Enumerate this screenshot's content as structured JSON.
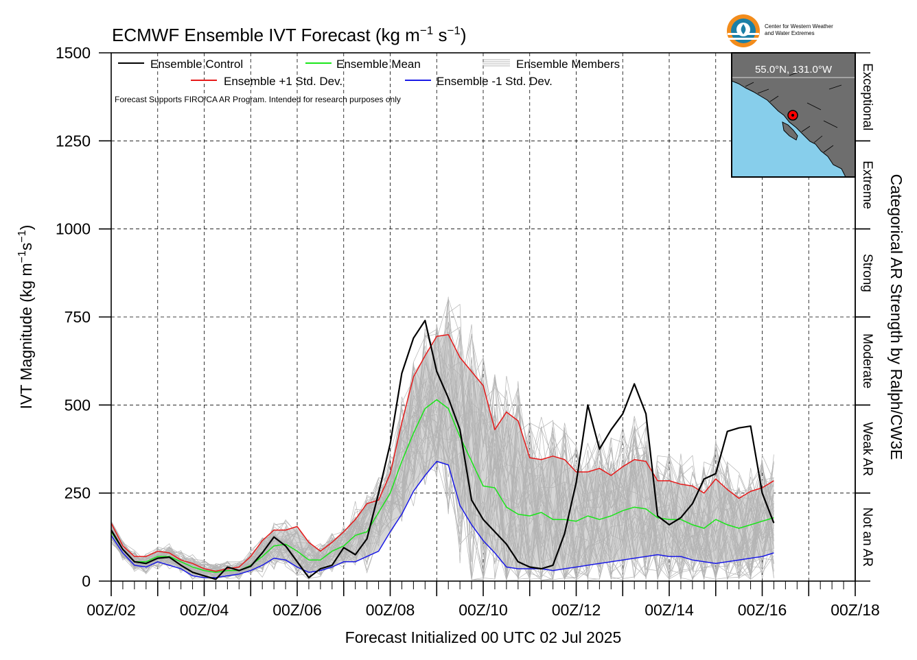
{
  "chart_data": {
    "type": "line",
    "title": "ECMWF Ensemble IVT Forecast (kg m",
    "title_unit_tail": " s",
    "title_close": ")",
    "superscript": "−1",
    "ylabel": "IVT Magnitude (kg m",
    "ylabel_mid": "s",
    "ylabel_close": ")",
    "xlabel": "Forecast Initialized 00 UTC 02 Jul 2025",
    "right_label": "Categorical AR Strength by Ralph/CW3E",
    "ylim": [
      0,
      1500
    ],
    "xlim_days": [
      2,
      18
    ],
    "y_ticks": [
      0,
      250,
      500,
      750,
      1000,
      1250,
      1500
    ],
    "x_tick_labels": [
      "00Z/02",
      "00Z/04",
      "00Z/06",
      "00Z/08",
      "00Z/10",
      "00Z/12",
      "00Z/14",
      "00Z/16",
      "00Z/18"
    ],
    "grid": true,
    "grid_style": "dashed",
    "legend": {
      "placement": "top-left",
      "control": "Ensemble Control",
      "mean": "Ensemble Mean",
      "members": "Ensemble Members",
      "plus_sd": "Ensemble +1 Std. Dev.",
      "minus_sd": "Ensemble -1 Std. Dev.",
      "note": "Forecast Supports FIRO/CA AR Program. Intended for research purposes only"
    },
    "colors": {
      "control": "#000000",
      "mean": "#19e619",
      "plus_sd": "#e61919",
      "minus_sd": "#1919e6",
      "members": "#b4b4b4",
      "spread_fill": "#d6d6d6",
      "ocean": "#87ceeb",
      "land": "#6e6e6e"
    },
    "categories": [
      {
        "label": "Not an AR",
        "range": [
          0,
          250
        ]
      },
      {
        "label": "Weak AR",
        "range": [
          250,
          500
        ]
      },
      {
        "label": "Moderate",
        "range": [
          500,
          750
        ]
      },
      {
        "label": "Strong",
        "range": [
          750,
          1000
        ]
      },
      {
        "label": "Extreme",
        "range": [
          1000,
          1250
        ]
      },
      {
        "label": "Exceptional",
        "range": [
          1250,
          1500
        ]
      }
    ],
    "inset_map": {
      "location_label": "55.0°N, 131.0°W",
      "lat": 55.0,
      "lon": -131.0
    },
    "logo_text_line1": "Center for Western Weather",
    "logo_text_line2": "and Water Extremes",
    "series": [
      {
        "name": "Ensemble Control",
        "points": [
          [
            2.0,
            145
          ],
          [
            2.25,
            90
          ],
          [
            2.5,
            55
          ],
          [
            2.75,
            50
          ],
          [
            3.0,
            65
          ],
          [
            3.25,
            68
          ],
          [
            3.5,
            45
          ],
          [
            3.75,
            25
          ],
          [
            4.0,
            15
          ],
          [
            4.25,
            5
          ],
          [
            4.5,
            40
          ],
          [
            4.75,
            30
          ],
          [
            5.0,
            42
          ],
          [
            5.25,
            80
          ],
          [
            5.5,
            125
          ],
          [
            5.75,
            100
          ],
          [
            6.0,
            55
          ],
          [
            6.25,
            10
          ],
          [
            6.5,
            35
          ],
          [
            6.75,
            45
          ],
          [
            7.0,
            95
          ],
          [
            7.25,
            75
          ],
          [
            7.5,
            120
          ],
          [
            7.75,
            250
          ],
          [
            8.0,
            390
          ],
          [
            8.25,
            590
          ],
          [
            8.5,
            690
          ],
          [
            8.75,
            740
          ],
          [
            9.0,
            595
          ],
          [
            9.25,
            520
          ],
          [
            9.5,
            430
          ],
          [
            9.75,
            230
          ],
          [
            10.0,
            175
          ],
          [
            10.25,
            140
          ],
          [
            10.5,
            105
          ],
          [
            10.75,
            55
          ],
          [
            11.0,
            40
          ],
          [
            11.25,
            35
          ],
          [
            11.5,
            45
          ],
          [
            11.75,
            135
          ],
          [
            12.0,
            280
          ],
          [
            12.25,
            500
          ],
          [
            12.5,
            375
          ],
          [
            12.75,
            430
          ],
          [
            13.0,
            475
          ],
          [
            13.25,
            560
          ],
          [
            13.5,
            475
          ],
          [
            13.75,
            185
          ],
          [
            14.0,
            160
          ],
          [
            14.25,
            180
          ],
          [
            14.5,
            220
          ],
          [
            14.75,
            290
          ],
          [
            15.0,
            305
          ],
          [
            15.25,
            425
          ],
          [
            15.5,
            435
          ],
          [
            15.75,
            440
          ],
          [
            16.0,
            250
          ],
          [
            16.25,
            165
          ]
        ]
      },
      {
        "name": "Ensemble Mean",
        "points": [
          [
            2.0,
            140
          ],
          [
            2.25,
            90
          ],
          [
            2.5,
            55
          ],
          [
            2.75,
            55
          ],
          [
            3.0,
            70
          ],
          [
            3.25,
            70
          ],
          [
            3.5,
            55
          ],
          [
            3.75,
            40
          ],
          [
            4.0,
            30
          ],
          [
            4.25,
            25
          ],
          [
            4.5,
            30
          ],
          [
            4.75,
            30
          ],
          [
            5.0,
            45
          ],
          [
            5.25,
            70
          ],
          [
            5.5,
            100
          ],
          [
            5.75,
            105
          ],
          [
            6.0,
            85
          ],
          [
            6.25,
            60
          ],
          [
            6.5,
            60
          ],
          [
            6.75,
            85
          ],
          [
            7.0,
            100
          ],
          [
            7.25,
            130
          ],
          [
            7.5,
            140
          ],
          [
            7.75,
            195
          ],
          [
            8.0,
            250
          ],
          [
            8.25,
            340
          ],
          [
            8.5,
            420
          ],
          [
            8.75,
            490
          ],
          [
            9.0,
            515
          ],
          [
            9.25,
            490
          ],
          [
            9.5,
            410
          ],
          [
            9.75,
            340
          ],
          [
            10.0,
            270
          ],
          [
            10.25,
            265
          ],
          [
            10.5,
            210
          ],
          [
            10.75,
            190
          ],
          [
            11.0,
            185
          ],
          [
            11.25,
            195
          ],
          [
            11.5,
            175
          ],
          [
            11.75,
            175
          ],
          [
            12.0,
            170
          ],
          [
            12.25,
            185
          ],
          [
            12.5,
            175
          ],
          [
            12.75,
            185
          ],
          [
            13.0,
            200
          ],
          [
            13.25,
            210
          ],
          [
            13.5,
            205
          ],
          [
            13.75,
            180
          ],
          [
            14.0,
            175
          ],
          [
            14.25,
            175
          ],
          [
            14.5,
            160
          ],
          [
            14.75,
            150
          ],
          [
            15.0,
            175
          ],
          [
            15.25,
            160
          ],
          [
            15.5,
            150
          ],
          [
            15.75,
            160
          ],
          [
            16.0,
            170
          ],
          [
            16.25,
            180
          ]
        ]
      },
      {
        "name": "Ensemble +1 Std. Dev.",
        "points": [
          [
            2.0,
            165
          ],
          [
            2.25,
            100
          ],
          [
            2.5,
            70
          ],
          [
            2.75,
            70
          ],
          [
            3.0,
            85
          ],
          [
            3.25,
            80
          ],
          [
            3.5,
            60
          ],
          [
            3.75,
            50
          ],
          [
            4.0,
            35
          ],
          [
            4.25,
            28
          ],
          [
            4.5,
            35
          ],
          [
            4.75,
            40
          ],
          [
            5.0,
            70
          ],
          [
            5.25,
            115
          ],
          [
            5.5,
            145
          ],
          [
            5.75,
            145
          ],
          [
            6.0,
            155
          ],
          [
            6.25,
            110
          ],
          [
            6.5,
            85
          ],
          [
            6.75,
            110
          ],
          [
            7.0,
            140
          ],
          [
            7.25,
            175
          ],
          [
            7.5,
            220
          ],
          [
            7.75,
            230
          ],
          [
            8.0,
            305
          ],
          [
            8.25,
            450
          ],
          [
            8.5,
            580
          ],
          [
            8.75,
            640
          ],
          [
            9.0,
            695
          ],
          [
            9.25,
            700
          ],
          [
            9.5,
            635
          ],
          [
            9.75,
            595
          ],
          [
            10.0,
            555
          ],
          [
            10.25,
            430
          ],
          [
            10.5,
            480
          ],
          [
            10.75,
            455
          ],
          [
            11.0,
            350
          ],
          [
            11.25,
            345
          ],
          [
            11.5,
            355
          ],
          [
            11.75,
            345
          ],
          [
            12.0,
            310
          ],
          [
            12.25,
            310
          ],
          [
            12.5,
            320
          ],
          [
            12.75,
            300
          ],
          [
            13.0,
            325
          ],
          [
            13.25,
            345
          ],
          [
            13.5,
            340
          ],
          [
            13.75,
            285
          ],
          [
            14.0,
            285
          ],
          [
            14.25,
            275
          ],
          [
            14.5,
            270
          ],
          [
            14.75,
            250
          ],
          [
            15.0,
            290
          ],
          [
            15.25,
            260
          ],
          [
            15.5,
            235
          ],
          [
            15.75,
            255
          ],
          [
            16.0,
            265
          ],
          [
            16.25,
            285
          ]
        ]
      },
      {
        "name": "Ensemble -1 Std. Dev.",
        "points": [
          [
            2.0,
            130
          ],
          [
            2.25,
            80
          ],
          [
            2.5,
            45
          ],
          [
            2.75,
            40
          ],
          [
            3.0,
            55
          ],
          [
            3.25,
            45
          ],
          [
            3.5,
            35
          ],
          [
            3.75,
            15
          ],
          [
            4.0,
            10
          ],
          [
            4.25,
            10
          ],
          [
            4.5,
            15
          ],
          [
            4.75,
            20
          ],
          [
            5.0,
            30
          ],
          [
            5.25,
            45
          ],
          [
            5.5,
            65
          ],
          [
            5.75,
            60
          ],
          [
            6.0,
            40
          ],
          [
            6.25,
            25
          ],
          [
            6.5,
            30
          ],
          [
            6.75,
            40
          ],
          [
            7.0,
            55
          ],
          [
            7.25,
            55
          ],
          [
            7.5,
            70
          ],
          [
            7.75,
            85
          ],
          [
            8.0,
            140
          ],
          [
            8.25,
            190
          ],
          [
            8.5,
            255
          ],
          [
            8.75,
            300
          ],
          [
            9.0,
            340
          ],
          [
            9.25,
            330
          ],
          [
            9.5,
            215
          ],
          [
            9.75,
            160
          ],
          [
            10.0,
            115
          ],
          [
            10.25,
            80
          ],
          [
            10.5,
            40
          ],
          [
            10.75,
            35
          ],
          [
            11.0,
            35
          ],
          [
            11.25,
            35
          ],
          [
            11.5,
            30
          ],
          [
            11.75,
            35
          ],
          [
            12.0,
            40
          ],
          [
            12.25,
            45
          ],
          [
            12.5,
            50
          ],
          [
            12.75,
            55
          ],
          [
            13.0,
            60
          ],
          [
            13.25,
            65
          ],
          [
            13.5,
            70
          ],
          [
            13.75,
            75
          ],
          [
            14.0,
            70
          ],
          [
            14.25,
            70
          ],
          [
            14.5,
            60
          ],
          [
            14.75,
            55
          ],
          [
            15.0,
            50
          ],
          [
            15.25,
            55
          ],
          [
            15.5,
            60
          ],
          [
            15.75,
            65
          ],
          [
            16.0,
            70
          ],
          [
            16.25,
            80
          ]
        ]
      }
    ]
  }
}
